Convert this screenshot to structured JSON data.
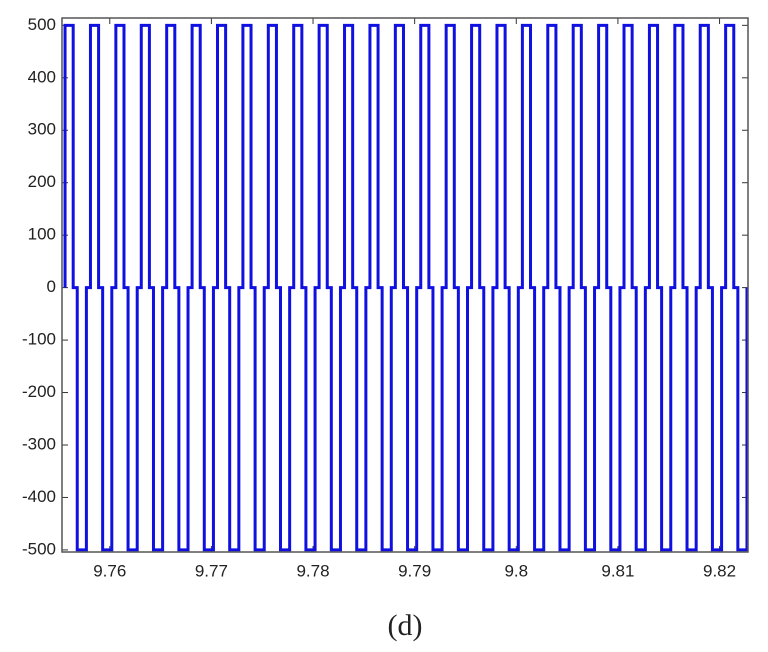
{
  "chart_data": {
    "type": "line",
    "caption": "(d)",
    "x": [
      9.7556,
      9.7556,
      9.7564,
      9.7564,
      9.7568,
      9.7568,
      9.7577,
      9.7577,
      9.7581,
      9.7581,
      9.7589,
      9.7589,
      9.7593,
      9.7593,
      9.7602,
      9.7602,
      9.7606,
      9.7606,
      9.7614,
      9.7614,
      9.7618,
      9.7618,
      9.7627,
      9.7627,
      9.7631,
      9.7631,
      9.7639,
      9.7639,
      9.7643,
      9.7643,
      9.7652,
      9.7652,
      9.7656,
      9.7656,
      9.7664,
      9.7664,
      9.7668,
      9.7668,
      9.7677,
      9.7677,
      9.7681,
      9.7681,
      9.7689,
      9.7689,
      9.7693,
      9.7693,
      9.7702,
      9.7702,
      9.7706,
      9.7706,
      9.7714,
      9.7714,
      9.7718,
      9.7718,
      9.7727,
      9.7727,
      9.7731,
      9.7731,
      9.7739,
      9.7739,
      9.7743,
      9.7743,
      9.7752,
      9.7752,
      9.7756,
      9.7756,
      9.7764,
      9.7764,
      9.7768,
      9.7768,
      9.7777,
      9.7777,
      9.7781,
      9.7781,
      9.7789,
      9.7789,
      9.7793,
      9.7793,
      9.7802,
      9.7802,
      9.7806,
      9.7806,
      9.7814,
      9.7814,
      9.7818,
      9.7818,
      9.7827,
      9.7827,
      9.7831,
      9.7831,
      9.7839,
      9.7839,
      9.7843,
      9.7843,
      9.7852,
      9.7852,
      9.7856,
      9.7856,
      9.7864,
      9.7864,
      9.7868,
      9.7868,
      9.7877,
      9.7877,
      9.7881,
      9.7881,
      9.7889,
      9.7889,
      9.7893,
      9.7893,
      9.7902,
      9.7902,
      9.7906,
      9.7906,
      9.7914,
      9.7914,
      9.7918,
      9.7918,
      9.7927,
      9.7927,
      9.7931,
      9.7931,
      9.7939,
      9.7939,
      9.7943,
      9.7943,
      9.7952,
      9.7952,
      9.7956,
      9.7956,
      9.7964,
      9.7964,
      9.7968,
      9.7968,
      9.7977,
      9.7977,
      9.7981,
      9.7981,
      9.7989,
      9.7989,
      9.7993,
      9.7993,
      9.8002,
      9.8002,
      9.8006,
      9.8006,
      9.8014,
      9.8014,
      9.8018,
      9.8018,
      9.8027,
      9.8027,
      9.8031,
      9.8031,
      9.8039,
      9.8039,
      9.8043,
      9.8043,
      9.8052,
      9.8052,
      9.8056,
      9.8056,
      9.8064,
      9.8064,
      9.8068,
      9.8068,
      9.8077,
      9.8077,
      9.8081,
      9.8081,
      9.8089,
      9.8089,
      9.8093,
      9.8093,
      9.8102,
      9.8102,
      9.8106,
      9.8106,
      9.8114,
      9.8114,
      9.8118,
      9.8118,
      9.8127,
      9.8127,
      9.8131,
      9.8131,
      9.8139,
      9.8139,
      9.8143,
      9.8143,
      9.8152,
      9.8152,
      9.8156,
      9.8156,
      9.8164,
      9.8164,
      9.8168,
      9.8168,
      9.8177,
      9.8177,
      9.8181,
      9.8181,
      9.8189,
      9.8189,
      9.8193,
      9.8193,
      9.8202,
      9.8202,
      9.8206,
      9.8206,
      9.8214,
      9.8214,
      9.8218,
      9.8218,
      9.8227,
      9.8227
    ],
    "series": [
      {
        "color": "#1010e0",
        "values": [
          0,
          500,
          500,
          0,
          0,
          -500,
          -500,
          0,
          0,
          500,
          500,
          0,
          0,
          -500,
          -500,
          0,
          0,
          500,
          500,
          0,
          0,
          -500,
          -500,
          0,
          0,
          500,
          500,
          0,
          0,
          -500,
          -500,
          0,
          0,
          500,
          500,
          0,
          0,
          -500,
          -500,
          0,
          0,
          500,
          500,
          0,
          0,
          -500,
          -500,
          0,
          0,
          500,
          500,
          0,
          0,
          -500,
          -500,
          0,
          0,
          500,
          500,
          0,
          0,
          -500,
          -500,
          0,
          0,
          500,
          500,
          0,
          0,
          -500,
          -500,
          0,
          0,
          500,
          500,
          0,
          0,
          -500,
          -500,
          0,
          0,
          500,
          500,
          0,
          0,
          -500,
          -500,
          0,
          0,
          500,
          500,
          0,
          0,
          -500,
          -500,
          0,
          0,
          500,
          500,
          0,
          0,
          -500,
          -500,
          0,
          0,
          500,
          500,
          0,
          0,
          -500,
          -500,
          0,
          0,
          500,
          500,
          0,
          0,
          -500,
          -500,
          0,
          0,
          500,
          500,
          0,
          0,
          -500,
          -500,
          0,
          0,
          500,
          500,
          0,
          0,
          -500,
          -500,
          0,
          0,
          500,
          500,
          0,
          0,
          -500,
          -500,
          0,
          0,
          500,
          500,
          0,
          0,
          -500,
          -500,
          0,
          0,
          500,
          500,
          0,
          0,
          -500,
          -500,
          0,
          0,
          500,
          500,
          0,
          0,
          -500,
          -500,
          0,
          0,
          500,
          500,
          0,
          0,
          -500,
          -500,
          0,
          0,
          500,
          500,
          0,
          0,
          -500,
          -500,
          0,
          0,
          500,
          500,
          0,
          0,
          -500,
          -500,
          0,
          0,
          500,
          500,
          0,
          0,
          -500,
          -500,
          0,
          0,
          500,
          500,
          0,
          0,
          -500,
          -500,
          0,
          0,
          500,
          500,
          0,
          0,
          -500,
          -500,
          0
        ]
      }
    ],
    "xlim": [
      9.7553,
      9.8228
    ],
    "xticks": [
      9.76,
      9.77,
      9.78,
      9.79,
      9.8,
      9.81,
      9.82
    ],
    "ylim": [
      -504,
      514
    ],
    "yticks": [
      -500,
      -400,
      -300,
      -200,
      -100,
      0,
      100,
      200,
      300,
      400,
      500
    ],
    "grid": false
  }
}
